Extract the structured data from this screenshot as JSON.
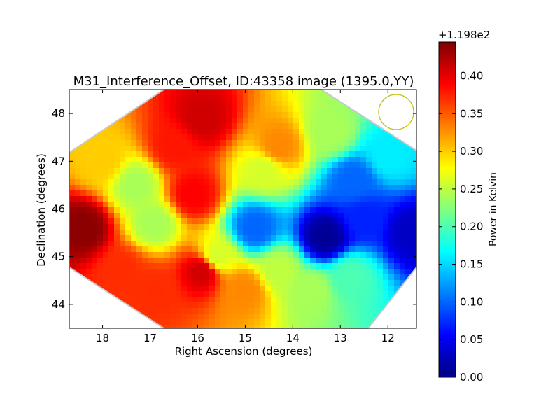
{
  "chart_data": {
    "type": "heatmap",
    "title": "M31_Interference_Offset, ID:43358 image (1395.0,YY)",
    "xlabel": "Right Ascension (degrees)",
    "ylabel": "Declination (degrees)",
    "x_ticks": [
      "18",
      "17",
      "16",
      "15",
      "14",
      "13",
      "12"
    ],
    "y_ticks": [
      "48",
      "47",
      "46",
      "45",
      "44"
    ],
    "xlim": [
      18.7,
      11.4
    ],
    "ylim": [
      43.5,
      48.5
    ],
    "x_reversed": true,
    "grid": false,
    "colorbar": {
      "label": "Power in Kelvin",
      "offset_text": "+1.198e2",
      "ticks": [
        "0.00",
        "0.05",
        "0.10",
        "0.15",
        "0.20",
        "0.25",
        "0.30",
        "0.35",
        "0.40"
      ],
      "range": [
        0.0,
        0.445
      ],
      "colormap": "jet"
    },
    "map_values": [
      {
        "ra": 18.4,
        "dec": 45.6,
        "value": 0.44
      },
      {
        "ra": 17.6,
        "dec": 44.7,
        "value": 0.37
      },
      {
        "ra": 16.9,
        "dec": 44.3,
        "value": 0.37
      },
      {
        "ra": 15.9,
        "dec": 44.7,
        "value": 0.41
      },
      {
        "ra": 15.9,
        "dec": 47.9,
        "value": 0.41
      },
      {
        "ra": 16.1,
        "dec": 46.3,
        "value": 0.39
      },
      {
        "ra": 16.5,
        "dec": 47.3,
        "value": 0.38
      },
      {
        "ra": 17.3,
        "dec": 46.5,
        "value": 0.24
      },
      {
        "ra": 16.9,
        "dec": 45.7,
        "value": 0.24
      },
      {
        "ra": 18.0,
        "dec": 47.0,
        "value": 0.3
      },
      {
        "ra": 15.0,
        "dec": 44.3,
        "value": 0.33
      },
      {
        "ra": 14.3,
        "dec": 47.3,
        "value": 0.33
      },
      {
        "ra": 13.2,
        "dec": 47.6,
        "value": 0.24
      },
      {
        "ra": 14.6,
        "dec": 46.8,
        "value": 0.26
      },
      {
        "ra": 14.8,
        "dec": 45.6,
        "value": 0.1
      },
      {
        "ra": 13.3,
        "dec": 45.4,
        "value": 0.01
      },
      {
        "ra": 12.5,
        "dec": 45.8,
        "value": 0.07
      },
      {
        "ra": 11.5,
        "dec": 45.5,
        "value": 0.03
      },
      {
        "ra": 12.0,
        "dec": 47.1,
        "value": 0.16
      },
      {
        "ra": 12.7,
        "dec": 46.6,
        "value": 0.1
      },
      {
        "ra": 14.3,
        "dec": 44.7,
        "value": 0.25
      },
      {
        "ra": 12.8,
        "dec": 44.6,
        "value": 0.2
      },
      {
        "ra": 15.6,
        "dec": 45.0,
        "value": 0.26
      },
      {
        "ra": 13.6,
        "dec": 44.3,
        "value": 0.24
      }
    ]
  },
  "colors": {
    "beam_circle": "#bfbf00",
    "footprint_edge": "#c8c8c8"
  }
}
